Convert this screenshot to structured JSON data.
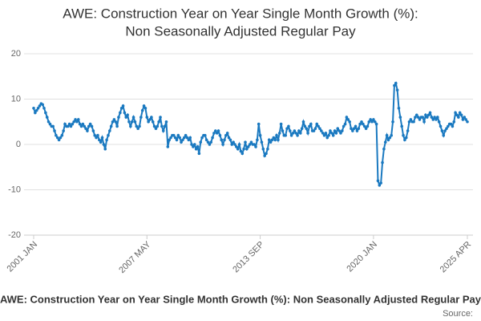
{
  "chart_data": {
    "type": "line",
    "title": [
      "AWE: Construction Year on Year Single Month Growth (%):",
      "Non Seasonally Adjusted Regular Pay"
    ],
    "source": "Source:",
    "categories": [
      "2001 JAN",
      null,
      null,
      null,
      null,
      null,
      null,
      null,
      null,
      null,
      null,
      null,
      null,
      null,
      null,
      null,
      null,
      null,
      null,
      null,
      null,
      null,
      null,
      null,
      null,
      null,
      null,
      null,
      null,
      null,
      null,
      null,
      null,
      null,
      null,
      null,
      null,
      null,
      null,
      null,
      null,
      null,
      null,
      null,
      null,
      null,
      null,
      null,
      null,
      null,
      null,
      null,
      null,
      null,
      null,
      null,
      null,
      null,
      null,
      null,
      null,
      null,
      null,
      null,
      null,
      null,
      null,
      null,
      null,
      null,
      null,
      null,
      null,
      null,
      null,
      null,
      "2007 MAY",
      null,
      null,
      null,
      null,
      null,
      null,
      null,
      null,
      null,
      null,
      null,
      null,
      null,
      null,
      null,
      null,
      null,
      null,
      null,
      null,
      null,
      null,
      null,
      null,
      null,
      null,
      null,
      null,
      null,
      null,
      null,
      null,
      null,
      null,
      null,
      null,
      null,
      null,
      null,
      null,
      null,
      null,
      null,
      null,
      null,
      null,
      null,
      null,
      null,
      null,
      null,
      null,
      null,
      null,
      null,
      null,
      null,
      null,
      null,
      null,
      null,
      null,
      null,
      null,
      null,
      null,
      null,
      null,
      null,
      null,
      null,
      null,
      null,
      null,
      null,
      "2013 SEP",
      null,
      null,
      null,
      null,
      null,
      null,
      null,
      null,
      null,
      null,
      null,
      null,
      null,
      null,
      null,
      null,
      null,
      null,
      null,
      null,
      null,
      null,
      null,
      null,
      null,
      null,
      null,
      null,
      null,
      null,
      null,
      null,
      null,
      null,
      null,
      null,
      null,
      null,
      null,
      null,
      null,
      null,
      null,
      null,
      null,
      null,
      null,
      null,
      null,
      null,
      null,
      null,
      null,
      null,
      null,
      null,
      null,
      null,
      null,
      null,
      null,
      null,
      null,
      null,
      null,
      null,
      null,
      null,
      null,
      null,
      null,
      null,
      null,
      null,
      null,
      "2020 JAN",
      null,
      null,
      null,
      null,
      null,
      null,
      null,
      null,
      null,
      null,
      null,
      null,
      null,
      null,
      null,
      null,
      null,
      null,
      null,
      null,
      null,
      null,
      null,
      null,
      null,
      null,
      null,
      null,
      null,
      null,
      null,
      null,
      null,
      null,
      null,
      null,
      null,
      null,
      null,
      null,
      null,
      null,
      null,
      null,
      null,
      null,
      null,
      null,
      null,
      null,
      null,
      null,
      null,
      null,
      null,
      null,
      null,
      null,
      null,
      null,
      null,
      null,
      "2025 APR"
    ],
    "series": [
      {
        "name": "AWE: Construction Year on Year Single Month Growth (%): Non Seasonally Adjusted Regular Pay",
        "color": "#1a79c0",
        "values": [
          8,
          7,
          7.5,
          8,
          8.5,
          9,
          8.8,
          8,
          7,
          6,
          5,
          4.5,
          4,
          4,
          3,
          2,
          1.5,
          1,
          1.5,
          2,
          3,
          4.5,
          4,
          4,
          4.5,
          4,
          4.5,
          5,
          5.5,
          5,
          5.5,
          4.5,
          4,
          4.5,
          4,
          3.5,
          3,
          4,
          4.5,
          4,
          3,
          2,
          1.5,
          2,
          1,
          0.5,
          1.5,
          0,
          -1,
          1,
          2,
          3,
          4,
          5,
          5.5,
          5,
          4,
          6,
          7,
          8,
          8.5,
          7,
          6,
          6.5,
          5,
          4,
          5,
          6,
          5,
          4,
          3.5,
          4,
          6,
          7.5,
          8.5,
          8,
          6,
          5,
          5.5,
          6,
          5,
          4,
          3.5,
          4,
          5,
          6,
          4,
          3,
          4,
          5,
          -0.5,
          1,
          1.5,
          2,
          2,
          1.5,
          1,
          2,
          1.5,
          0.5,
          1,
          1.5,
          2,
          1.5,
          1,
          1.5,
          0,
          -0.5,
          0,
          -1,
          -0.5,
          -2,
          0.5,
          1.5,
          2,
          2,
          1,
          0.5,
          0,
          0.5,
          1.5,
          2.5,
          3,
          2.5,
          3,
          2,
          1,
          0,
          1,
          2,
          2.5,
          1.5,
          1,
          0,
          0.5,
          0,
          -0.5,
          -1,
          0,
          -1.5,
          -2,
          -1,
          0.5,
          -1,
          -0.5,
          0,
          0.5,
          0,
          0,
          -0.5,
          1,
          4.5,
          2,
          0.5,
          -1,
          -2.5,
          -2,
          -1,
          1,
          0.5,
          1,
          1.5,
          1,
          2,
          1,
          2.5,
          4.5,
          3,
          2,
          2,
          3.5,
          4,
          3,
          2,
          2.5,
          3,
          2.5,
          2,
          3,
          2.5,
          3.5,
          5,
          4,
          3.5,
          2.5,
          4,
          4.5,
          3,
          3,
          3.5,
          4.5,
          4,
          3.5,
          3,
          2.5,
          2,
          2.5,
          1.5,
          2,
          3,
          2.5,
          2,
          3,
          2.5,
          3.5,
          3,
          2.5,
          3,
          4,
          4.5,
          6,
          5.5,
          5,
          3.5,
          3,
          3.5,
          4,
          3,
          3.5,
          4.5,
          5,
          4.5,
          4,
          3.5,
          4,
          5,
          5.5,
          5,
          5.5,
          5,
          4.5,
          -8,
          -9,
          -8.5,
          -4,
          -1,
          0.5,
          2,
          1,
          1.5,
          2,
          5,
          13,
          13.5,
          12,
          8,
          6,
          4,
          2,
          1,
          1.5,
          3,
          5,
          5.5,
          5,
          5,
          6,
          6.5,
          6,
          5.5,
          6,
          6,
          5,
          6.5,
          6,
          6.5,
          7,
          6,
          5.5,
          6,
          5.5,
          6,
          5,
          4,
          3,
          2,
          3,
          3.5,
          4,
          4.5,
          4.5,
          4,
          5,
          7,
          6.5,
          6,
          7,
          6.5,
          5.5,
          6,
          5.5,
          5
        ]
      }
    ],
    "ylim": [
      -20,
      20
    ],
    "yticks": [
      -20,
      -10,
      0,
      10,
      20
    ],
    "grid": true,
    "markers": true
  }
}
